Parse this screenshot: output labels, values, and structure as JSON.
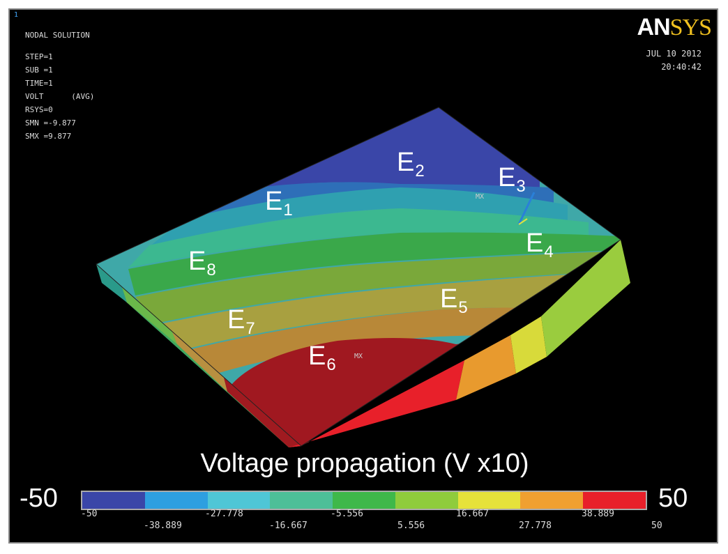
{
  "header": {
    "window_number": "1",
    "info_lines": [
      "NODAL SOLUTION",
      "STEP=1",
      "SUB =1",
      "TIME=1",
      "VOLT      (AVG)",
      "RSYS=0",
      "SMN =-9.877",
      "SMX =9.877"
    ],
    "logo_part1": "AN",
    "logo_part2": "SYS",
    "date": "JUL 10 2012",
    "time": "20:40:42"
  },
  "electrodes": [
    {
      "base": "E",
      "sub": "1"
    },
    {
      "base": "E",
      "sub": "2"
    },
    {
      "base": "E",
      "sub": "3"
    },
    {
      "base": "E",
      "sub": "4"
    },
    {
      "base": "E",
      "sub": "5"
    },
    {
      "base": "E",
      "sub": "6"
    },
    {
      "base": "E",
      "sub": "7"
    },
    {
      "base": "E",
      "sub": "8"
    }
  ],
  "markers": {
    "mx1": "MX",
    "mx2": "MX"
  },
  "title": "Voltage propagation (V x10)",
  "scale": {
    "min_label": "-50",
    "max_label": "50",
    "colors": [
      "#3a46a8",
      "#2e9fe0",
      "#4fc6d6",
      "#4dbf98",
      "#3fb84a",
      "#8fcc3c",
      "#e6e23a",
      "#f0a030",
      "#e8202a"
    ],
    "ticks_top": [
      "-50",
      "-27.778",
      "-5.556",
      "16.667",
      "38.889"
    ],
    "ticks_bottom": [
      "-38.889",
      "-16.667",
      "5.556",
      "27.778",
      "50"
    ]
  }
}
